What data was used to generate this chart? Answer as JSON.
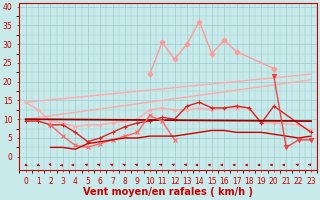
{
  "series": {
    "trend_upper": {
      "x": [
        0,
        23
      ],
      "y": [
        14.5,
        22.0
      ],
      "color": "#ffaaaa",
      "lw": 1.0,
      "marker": null
    },
    "trend_lower": {
      "x": [
        0,
        23
      ],
      "y": [
        10.0,
        20.5
      ],
      "color": "#ffaaaa",
      "lw": 1.0,
      "marker": null
    },
    "pink_spiky": {
      "x": [
        10,
        11,
        12,
        13,
        14,
        15,
        16,
        17,
        20
      ],
      "y": [
        22.0,
        30.5,
        26.0,
        30.0,
        36.0,
        27.5,
        31.0,
        28.0,
        23.5
      ],
      "color": "#ff9999",
      "lw": 1.0,
      "marker": "D",
      "ms": 2.5
    },
    "light_upper_line": {
      "x": [
        0,
        1,
        2,
        3,
        4,
        5,
        6,
        7,
        8,
        9,
        10,
        11,
        12,
        13,
        14,
        15,
        16,
        17,
        18,
        19,
        20,
        22,
        23
      ],
      "y": [
        14.5,
        12.5,
        9.5,
        9.0,
        8.0,
        8.5,
        8.5,
        9.0,
        9.5,
        10.0,
        12.5,
        13.0,
        12.5,
        12.5,
        13.0,
        12.5,
        13.0,
        13.0,
        13.0,
        9.0,
        9.0,
        8.5,
        7.0
      ],
      "color": "#ffaaaa",
      "lw": 1.0,
      "marker": "D",
      "ms": 1.5
    },
    "medium_red_line": {
      "x": [
        0,
        1,
        2,
        3,
        4,
        5,
        6,
        7,
        8,
        9,
        10,
        11,
        12,
        13,
        14,
        15,
        16,
        17,
        18,
        19,
        20,
        23
      ],
      "y": [
        9.5,
        9.5,
        8.5,
        8.5,
        6.5,
        4.0,
        5.0,
        6.5,
        8.0,
        9.0,
        9.5,
        10.5,
        10.0,
        13.5,
        14.5,
        13.0,
        13.0,
        13.5,
        13.0,
        9.0,
        13.5,
        6.5
      ],
      "color": "#dd2222",
      "lw": 1.0,
      "marker": "+",
      "ms": 3.5
    },
    "dark_red_nearly_flat": {
      "x": [
        0,
        23
      ],
      "y": [
        10.0,
        9.5
      ],
      "color": "#990000",
      "lw": 1.3,
      "marker": null
    },
    "red_lower_zigzag": {
      "x": [
        2,
        3,
        4,
        5,
        6,
        7,
        8,
        9,
        10,
        11,
        12
      ],
      "y": [
        8.5,
        5.5,
        3.0,
        2.5,
        3.5,
        4.5,
        5.5,
        6.5,
        11.0,
        9.5,
        4.5
      ],
      "color": "#ff6666",
      "lw": 1.0,
      "marker": "x",
      "ms": 3.0
    },
    "dark_red_trend": {
      "x": [
        2,
        3,
        4,
        5,
        6,
        7,
        8,
        9,
        10,
        11,
        12,
        13,
        14,
        15,
        16,
        17,
        18,
        19,
        20,
        21,
        22,
        23
      ],
      "y": [
        2.5,
        2.5,
        2.0,
        3.5,
        4.0,
        4.5,
        5.0,
        5.0,
        5.5,
        5.5,
        5.5,
        6.0,
        6.5,
        7.0,
        7.0,
        6.5,
        6.5,
        6.5,
        6.0,
        5.5,
        5.0,
        5.5
      ],
      "color": "#cc0000",
      "lw": 1.0,
      "marker": null
    },
    "end_drop": {
      "x": [
        20,
        21,
        22,
        23
      ],
      "y": [
        21.5,
        2.5,
        4.5,
        4.5
      ],
      "color": "#ee4444",
      "lw": 1.0,
      "marker": "v",
      "ms": 3.0
    }
  },
  "wind_arrows": {
    "x": [
      0,
      1,
      2,
      3,
      4,
      5,
      6,
      7,
      8,
      9,
      10,
      11,
      12,
      13,
      14,
      15,
      16,
      17,
      18,
      19,
      20,
      21,
      22,
      23
    ],
    "angle": [
      30,
      30,
      10,
      315,
      270,
      225,
      225,
      215,
      215,
      215,
      225,
      225,
      225,
      225,
      270,
      265,
      265,
      265,
      270,
      270,
      265,
      265,
      225,
      225
    ]
  },
  "xlabel": "Vent moyen/en rafales ( km/h )",
  "xlim": [
    -0.5,
    23.5
  ],
  "ylim": [
    -3.5,
    41
  ],
  "yticks": [
    0,
    5,
    10,
    15,
    20,
    25,
    30,
    35,
    40
  ],
  "xticks": [
    0,
    1,
    2,
    3,
    4,
    5,
    6,
    7,
    8,
    9,
    10,
    11,
    12,
    13,
    14,
    15,
    16,
    17,
    18,
    19,
    20,
    21,
    22,
    23
  ],
  "bg_color": "#c8eaea",
  "grid_color": "#99cccc",
  "axis_color": "#cc0000",
  "text_color": "#cc0000",
  "xlabel_fontsize": 7.0,
  "tick_fontsize": 5.5
}
